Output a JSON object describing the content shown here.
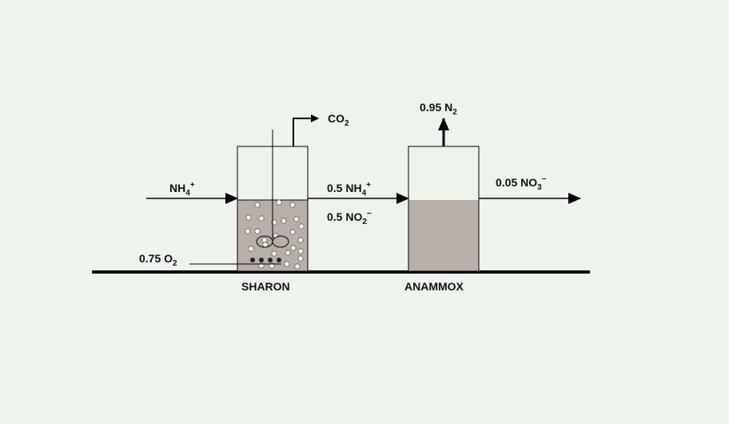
{
  "colors": {
    "background": "#eef3ee",
    "liquid": "#b8b0a8",
    "line": "#000000"
  },
  "labels": {
    "inlet": {
      "main": "NH",
      "sub": "4",
      "sup": "+"
    },
    "co2": {
      "main": "CO",
      "sub": "2"
    },
    "o2": {
      "main": "0.75 O",
      "sub": "2"
    },
    "mid_nh4": {
      "main": "0.5 NH",
      "sub": "4",
      "sup": "+"
    },
    "mid_no2": {
      "main": "0.5 NO",
      "sub": "2",
      "sup": "−"
    },
    "n2": {
      "main": "0.95 N",
      "sub": "2"
    },
    "no3": {
      "main": "0.05 NO",
      "sub": "3",
      "sup": "−"
    },
    "sharon": "SHARON",
    "anammox": "ANAMMOX"
  }
}
